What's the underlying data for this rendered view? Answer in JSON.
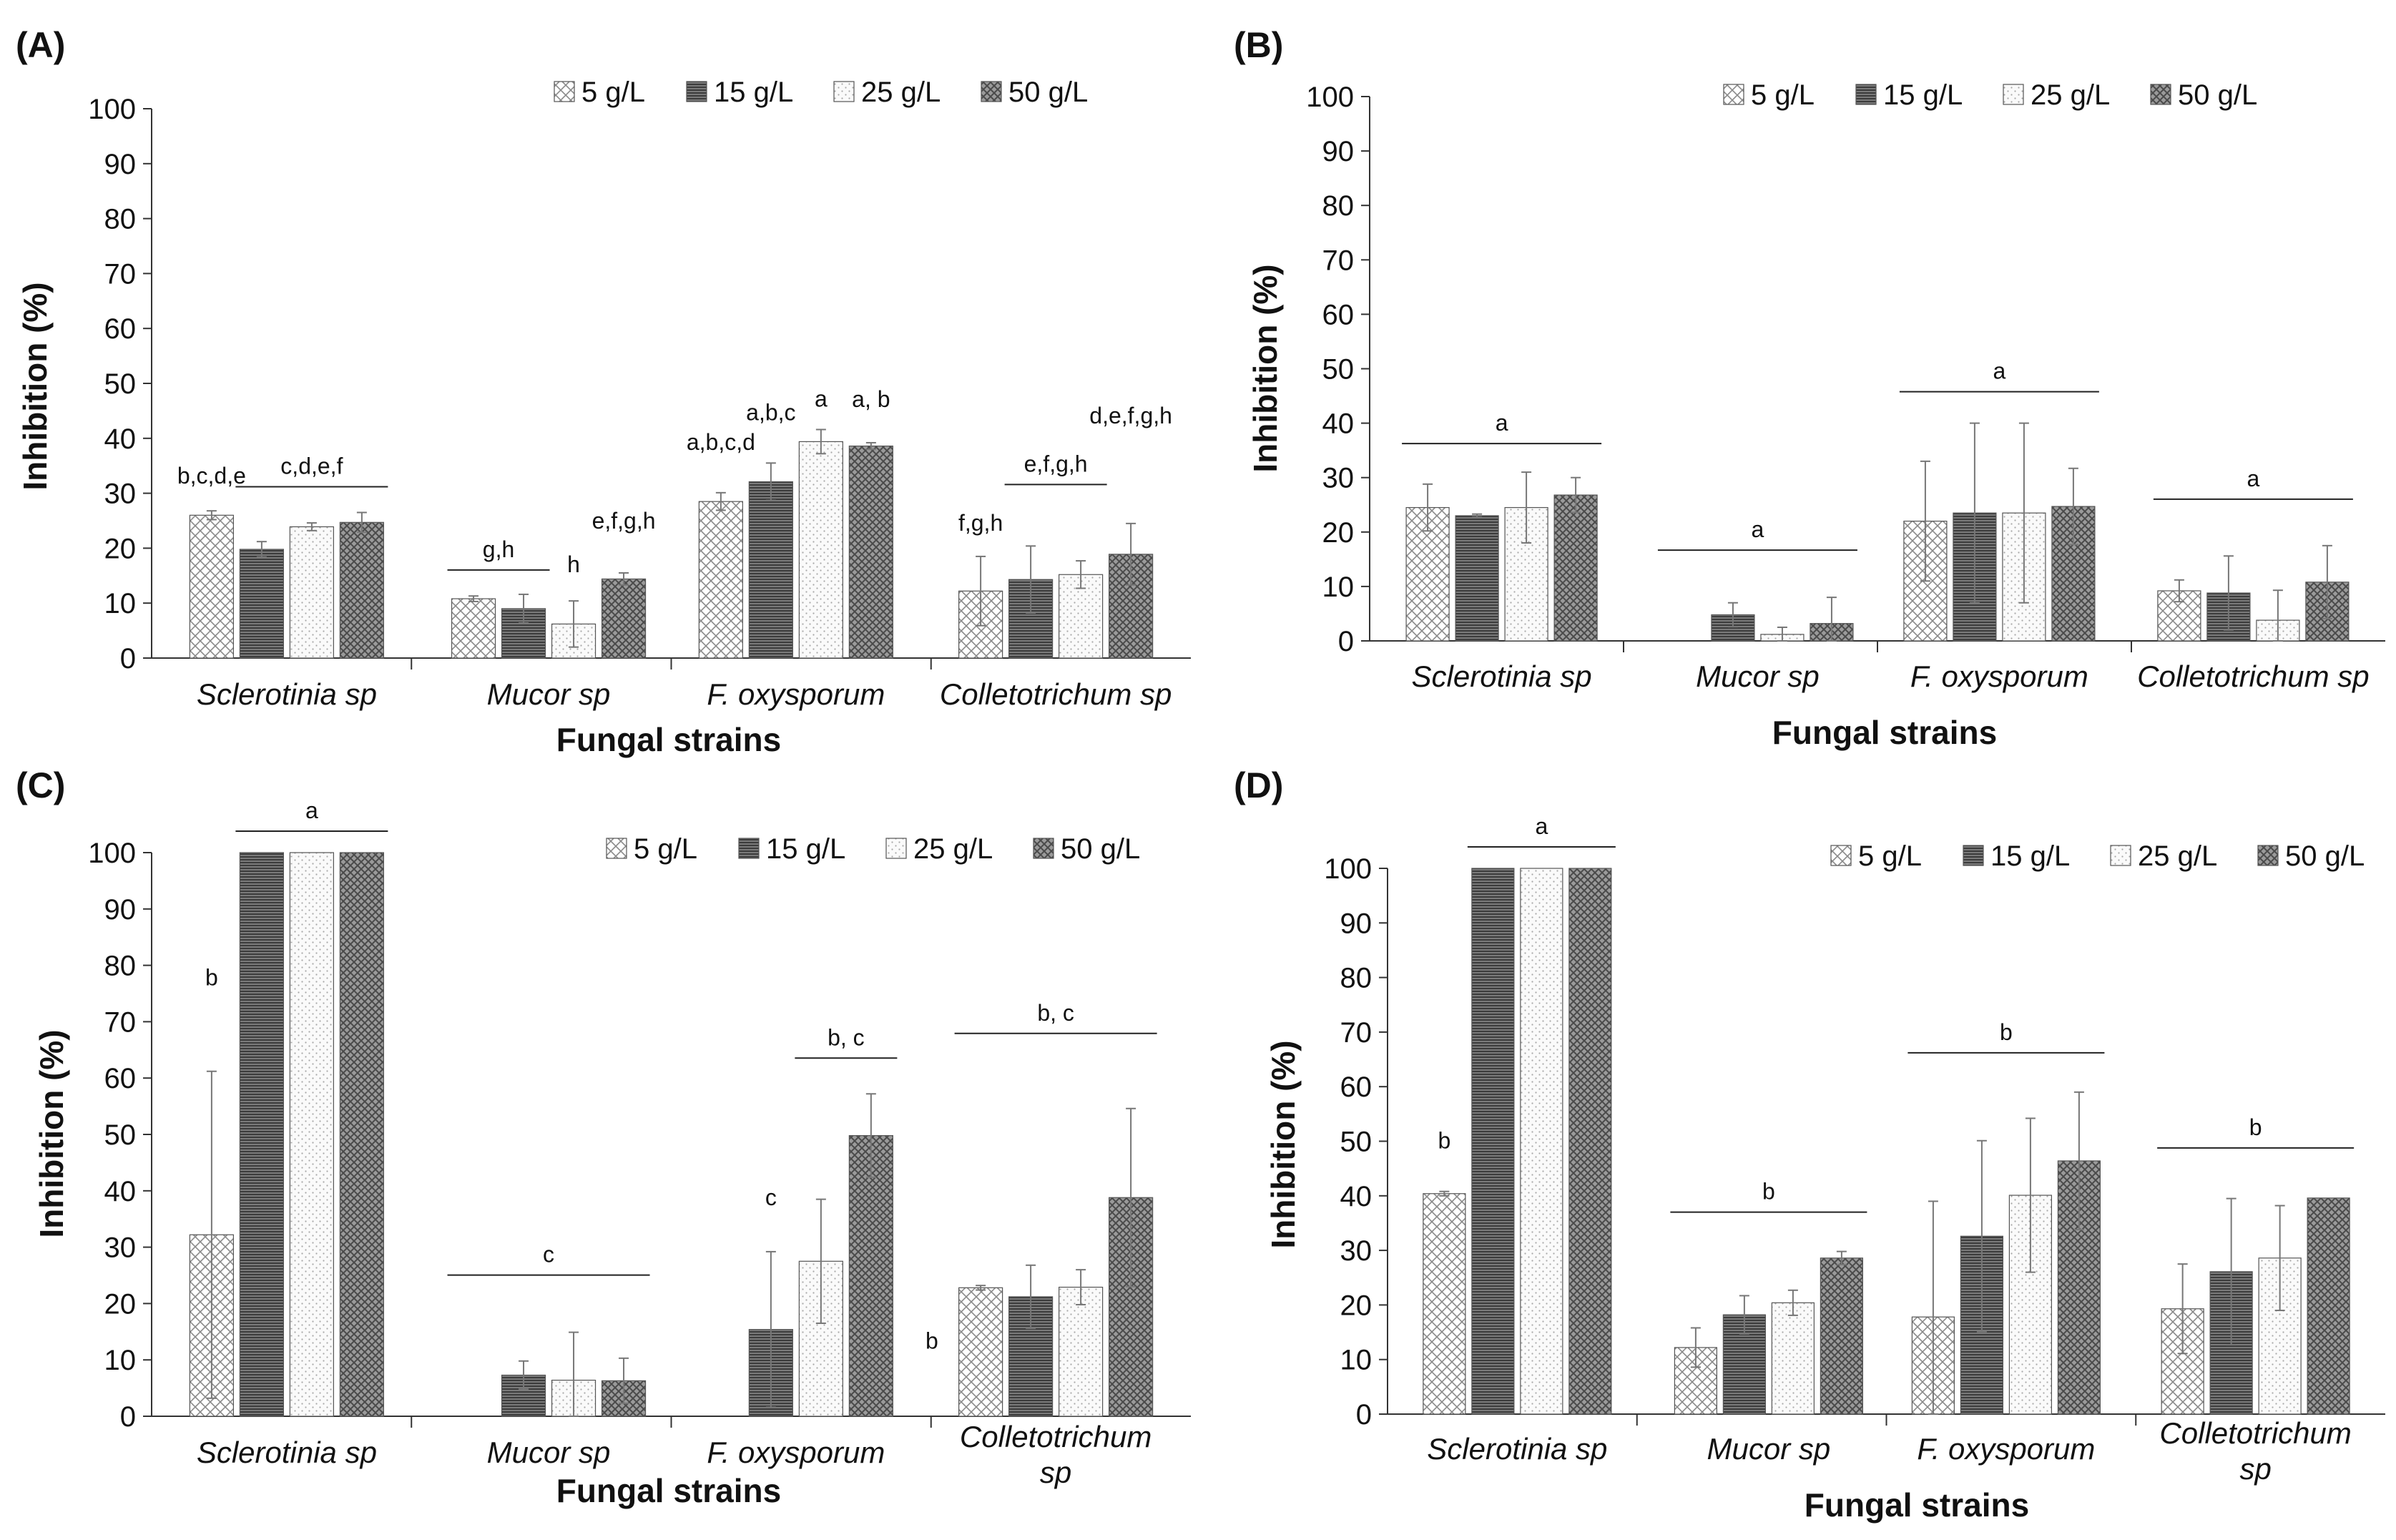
{
  "colors": {
    "s0": "#ffffff",
    "s1": "#6e6e6e",
    "s2": "#f4f4f4",
    "s3": "#8c8c8c",
    "axis": "#333333",
    "error": "#777777"
  },
  "chart_data": [
    {
      "panel": "(A)",
      "type": "bar",
      "categories": [
        "Sclerotinia sp",
        "Mucor sp",
        "F. oxysporum",
        "Colletotrichum sp"
      ],
      "series": [
        {
          "name": "5 g/L",
          "values": [
            26,
            10.8,
            28.5,
            12.2
          ],
          "errors": [
            0.8,
            0.5,
            1.6,
            6.3
          ]
        },
        {
          "name": "15 g/L",
          "values": [
            19.8,
            9,
            32.1,
            14.3
          ],
          "errors": [
            1.4,
            2.6,
            3.4,
            6.1
          ]
        },
        {
          "name": "25 g/L",
          "values": [
            23.9,
            6.2,
            39.4,
            15.2
          ],
          "errors": [
            0.7,
            4.2,
            2.2,
            2.5
          ]
        },
        {
          "name": "50 g/L",
          "values": [
            24.7,
            14.4,
            38.6,
            18.9
          ],
          "errors": [
            1.8,
            1.1,
            0.6,
            5.6
          ]
        }
      ],
      "xlabel": "Fungal strains",
      "ylabel": "Inhibition  (%)",
      "ylim": [
        0,
        100
      ],
      "yticks": [
        0,
        10,
        20,
        30,
        40,
        50,
        60,
        70,
        80,
        90,
        100
      ],
      "legend_position": "top-right",
      "annotations": [
        "b,c,d,e",
        "c,d,e,f",
        "g,h",
        "h",
        "e,f,g,h",
        "a,b,c,d",
        "a,b,c",
        "a",
        "a, b",
        "f,g,h",
        "e,f,g,h",
        "d,e,f,g,h"
      ]
    },
    {
      "panel": "(B)",
      "type": "bar",
      "categories": [
        "Sclerotinia sp",
        "Mucor sp",
        "F. oxysporum",
        "Colletotrichum sp"
      ],
      "series": [
        {
          "name": "5 g/L",
          "values": [
            24.5,
            0,
            22,
            9.2
          ],
          "errors": [
            4.3,
            0,
            11,
            2
          ]
        },
        {
          "name": "15 g/L",
          "values": [
            23,
            4.8,
            23.5,
            8.8
          ],
          "errors": [
            0.3,
            2.2,
            16.5,
            6.8
          ]
        },
        {
          "name": "25 g/L",
          "values": [
            24.5,
            1.2,
            23.5,
            3.8
          ],
          "errors": [
            6.5,
            1.3,
            16.5,
            5.5
          ]
        },
        {
          "name": "50 g/L",
          "values": [
            26.8,
            3.2,
            24.7,
            10.8
          ],
          "errors": [
            3.2,
            4.8,
            7,
            6.7
          ]
        }
      ],
      "xlabel": "Fungal strains",
      "ylabel": "Inhibition  (%)",
      "ylim": [
        0,
        100
      ],
      "yticks": [
        0,
        10,
        20,
        30,
        40,
        50,
        60,
        70,
        80,
        90,
        100
      ],
      "legend_position": "top-right",
      "annotations": [
        "a",
        "a",
        "a",
        "a"
      ]
    },
    {
      "panel": "(C)",
      "type": "bar",
      "categories": [
        "Sclerotinia sp",
        "Mucor sp",
        "F. oxysporum",
        "Colletotrichum sp"
      ],
      "series": [
        {
          "name": "5 g/L",
          "values": [
            32.2,
            0,
            0,
            22.8
          ],
          "errors": [
            29,
            0,
            0,
            0.4
          ]
        },
        {
          "name": "15 g/L",
          "values": [
            100,
            7.3,
            15.4,
            21.2
          ],
          "errors": [
            0,
            2.5,
            13.8,
            5.6
          ]
        },
        {
          "name": "25 g/L",
          "values": [
            100,
            6.4,
            27.5,
            22.9
          ],
          "errors": [
            0,
            8.5,
            11,
            3.1
          ]
        },
        {
          "name": "50 g/L",
          "values": [
            100,
            6.3,
            49.8,
            38.8
          ],
          "errors": [
            0,
            4,
            7.4,
            15.8
          ]
        }
      ],
      "xlabel": "Fungal strains",
      "ylabel": "Inhibition  (%)",
      "ylim": [
        0,
        100
      ],
      "yticks": [
        0,
        10,
        20,
        30,
        40,
        50,
        60,
        70,
        80,
        90,
        100
      ],
      "legend_position": "top-right",
      "annotations": [
        "a",
        "b",
        "c",
        "c",
        "b, c",
        "b",
        "b, c"
      ]
    },
    {
      "panel": "(D)",
      "type": "bar",
      "categories": [
        "Sclerotinia sp",
        "Mucor sp",
        "F. oxysporum",
        "Colletotrichum sp"
      ],
      "series": [
        {
          "name": "5 g/L",
          "values": [
            40.4,
            12.2,
            17.8,
            19.3
          ],
          "errors": [
            0.4,
            3.6,
            21.2,
            8.2
          ]
        },
        {
          "name": "15 g/L",
          "values": [
            100,
            18.2,
            32.6,
            26.1
          ],
          "errors": [
            0,
            3.5,
            17.5,
            13.4
          ]
        },
        {
          "name": "25 g/L",
          "values": [
            100,
            20.4,
            40.1,
            28.6
          ],
          "errors": [
            0,
            2.3,
            14.1,
            9.6
          ]
        },
        {
          "name": "50 g/L",
          "values": [
            100,
            28.6,
            46.4,
            39.6
          ],
          "errors": [
            0,
            1.2,
            12.6,
            0
          ]
        }
      ],
      "xlabel": "Fungal strains",
      "ylabel": "Inhibition  (%)",
      "ylim": [
        0,
        100
      ],
      "yticks": [
        0,
        10,
        20,
        30,
        40,
        50,
        60,
        70,
        80,
        90,
        100
      ],
      "legend_position": "top-right",
      "annotations": [
        "a",
        "b",
        "b",
        "b",
        "b"
      ]
    }
  ]
}
